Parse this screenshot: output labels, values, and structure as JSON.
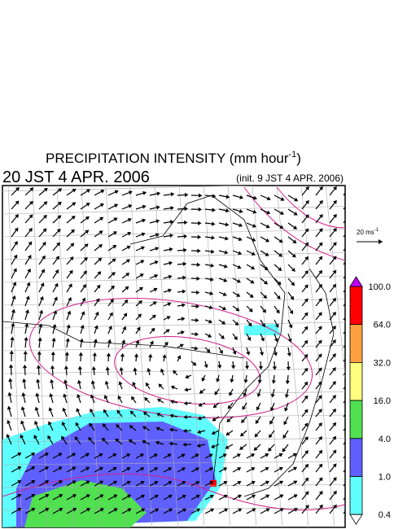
{
  "header": {
    "title": [
      "PRECIPITATION INTENSITY (mm hour",
      "-1",
      ")"
    ],
    "valid_time": "20 JST 4 APR. 2006",
    "init_time": "(init. 9 JST 4 APR. 2006)"
  },
  "wind_scale": [
    "20 ms",
    "-1"
  ],
  "colorbar": {
    "labels": [
      "100.0",
      "64.0",
      "32.0",
      "16.0",
      "4.0",
      "1.0",
      "0.4"
    ],
    "colors": [
      "#ff0000",
      "#ffa040",
      "#ffff80",
      "#50e050",
      "#6060ff",
      "#60ffff"
    ],
    "over_color": "#c000ff",
    "under_color": "#ffffff"
  }
}
